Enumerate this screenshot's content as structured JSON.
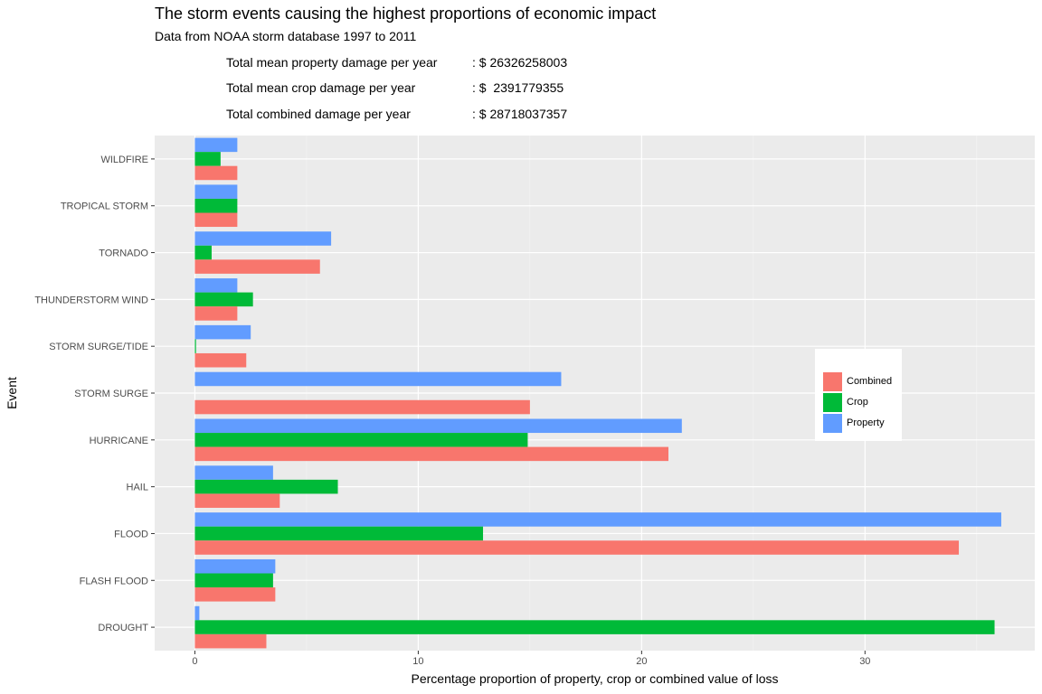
{
  "header": {
    "title": "The storm events causing the highest proportions of economic impact",
    "subtitle": "Data from NOAA storm database 1997 to 2011",
    "stats": [
      {
        "label": "Total mean property damage per year",
        "value": ": $ 26326258003"
      },
      {
        "label": "Total mean crop damage per year",
        "value": ": $  2391779355"
      },
      {
        "label": "Total combined damage per year",
        "value": ": $ 28718037357"
      }
    ]
  },
  "chart_data": {
    "type": "bar",
    "orientation": "horizontal",
    "xlabel": "Percentage proportion of property, crop or combined value of loss",
    "ylabel": "Event",
    "xlim": [
      -1.8,
      37.6
    ],
    "xticks": [
      0,
      10,
      20,
      30
    ],
    "grid": true,
    "legend_position": "right",
    "categories": [
      "DROUGHT",
      "FLASH FLOOD",
      "FLOOD",
      "HAIL",
      "HURRICANE",
      "STORM SURGE",
      "STORM SURGE/TIDE",
      "THUNDERSTORM WIND",
      "TORNADO",
      "TROPICAL STORM",
      "WILDFIRE"
    ],
    "series": [
      {
        "name": "Combined",
        "color": "#F8766D",
        "values": [
          3.2,
          3.6,
          34.2,
          3.8,
          21.2,
          15.0,
          2.3,
          1.9,
          5.6,
          1.9,
          1.9
        ]
      },
      {
        "name": "Crop",
        "color": "#00BA38",
        "values": [
          35.8,
          3.5,
          12.9,
          6.4,
          14.9,
          0.0,
          0.05,
          2.6,
          0.75,
          1.9,
          1.15
        ]
      },
      {
        "name": "Property",
        "color": "#619CFF",
        "values": [
          0.2,
          3.6,
          36.1,
          3.5,
          21.8,
          16.4,
          2.5,
          1.9,
          6.1,
          1.9,
          1.9
        ]
      }
    ]
  }
}
